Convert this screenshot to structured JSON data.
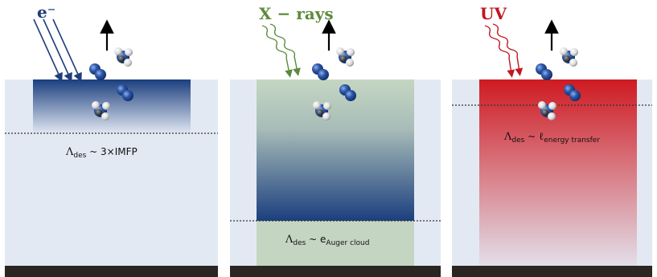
{
  "panels": [
    {
      "title": "e⁻",
      "label": {
        "symbol": "Λ",
        "sub": "des",
        "relation": " ~ ",
        "value": "3×IMFP",
        "value_sub": ""
      }
    },
    {
      "title": "X − rays",
      "label": {
        "symbol": "Λ",
        "sub": "des",
        "relation": " ~ ",
        "value": "e",
        "value_sub": "Auger cloud"
      }
    },
    {
      "title": "UV",
      "label": {
        "symbol": "Λ",
        "sub": "des",
        "relation": " ~ ",
        "value": "ℓ",
        "value_sub": "energy transfer"
      }
    }
  ],
  "colors": {
    "background": "#e3e9f3",
    "substrate": "#2b2622",
    "electron_gradient": "#1b3f7e",
    "xray_volume": "#c4d6c2",
    "xray_gradient": "#1b3f7e",
    "uv_gradient": "#cf1a22",
    "molecule_blue": "#2d57a8",
    "electron_arrows": "#1f3f7a",
    "xray_arrows": "#5d8a3c",
    "uv_arrows": "#c0171f"
  },
  "icons": [
    "electron-beam-arrows",
    "wavy-xray-arrows",
    "wavy-uv-arrows",
    "desorption-arrow-icon",
    "ammonia-molecule-icon",
    "nitrogen-molecule-icon"
  ]
}
